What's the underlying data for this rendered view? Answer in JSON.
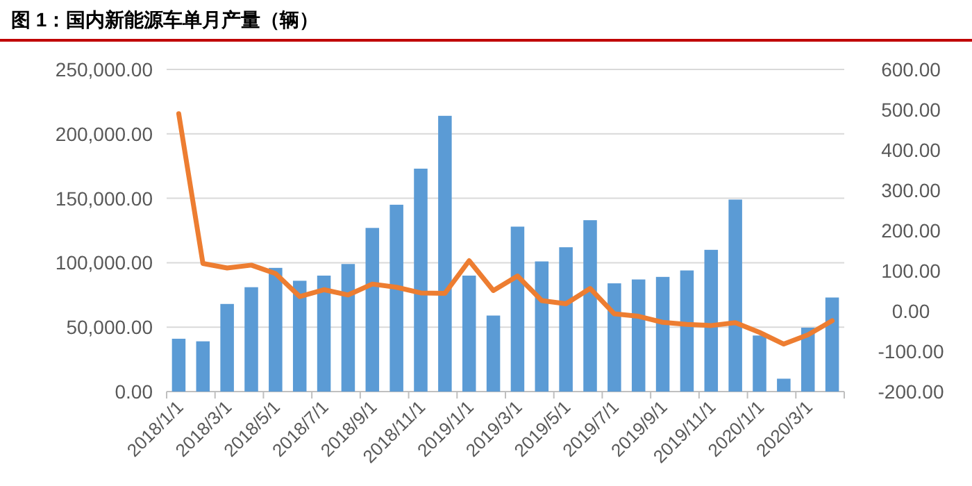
{
  "chart_data": {
    "type": "bar",
    "title": "图 1：国内新能源车单月产量（辆）",
    "categories": [
      "2018/1/1",
      null,
      "2018/3/1",
      null,
      "2018/5/1",
      null,
      "2018/7/1",
      null,
      "2018/9/1",
      null,
      "2018/11/1",
      null,
      "2019/1/1",
      null,
      "2019/3/1",
      null,
      "2019/5/1",
      null,
      "2019/7/1",
      null,
      "2019/9/1",
      null,
      "2019/11/1",
      null,
      "2020/1/1",
      null,
      "2020/3/1",
      null
    ],
    "series": [
      {
        "color": "#5b9bd5",
        "values": [
          41000,
          39000,
          68000,
          81000,
          96000,
          86000,
          90000,
          99000,
          127000,
          145000,
          173000,
          214000,
          90000,
          59000,
          128000,
          101000,
          112000,
          133000,
          84000,
          87000,
          89000,
          94000,
          110000,
          149000,
          43500,
          10000,
          49600,
          73000
        ]
      },
      {
        "type": "line",
        "axis": "y2",
        "color": "#ed7d31",
        "marker": "none",
        "values": [
          490,
          118,
          107,
          114,
          93,
          36,
          53,
          40,
          67,
          59,
          45,
          44,
          125,
          51,
          87,
          26,
          18,
          56,
          -7,
          -13,
          -28,
          -33,
          -36,
          -29,
          -53,
          -82,
          -59,
          -24
        ]
      }
    ],
    "ylim": [
      0,
      250000
    ],
    "yticks": [
      {
        "value": 0,
        "label": "0.00"
      },
      {
        "value": 50000,
        "label": "50,000.00"
      },
      {
        "value": 100000,
        "label": "100,000.00"
      },
      {
        "value": 150000,
        "label": "150,000.00"
      },
      {
        "value": 200000,
        "label": "200,000.00"
      },
      {
        "value": 250000,
        "label": "250,000.00"
      }
    ],
    "y2lim": [
      -200,
      600
    ],
    "y2ticks": [
      {
        "value": -200,
        "label": "-200.00"
      },
      {
        "value": -100,
        "label": "-100.00"
      },
      {
        "value": 0,
        "label": "0.00"
      },
      {
        "value": 100,
        "label": "100.00"
      },
      {
        "value": 200,
        "label": "200.00"
      },
      {
        "value": 300,
        "label": "300.00"
      },
      {
        "value": 400,
        "label": "400.00"
      },
      {
        "value": 500,
        "label": "500.00"
      },
      {
        "value": 600,
        "label": "600.00"
      }
    ],
    "grid": "y"
  }
}
